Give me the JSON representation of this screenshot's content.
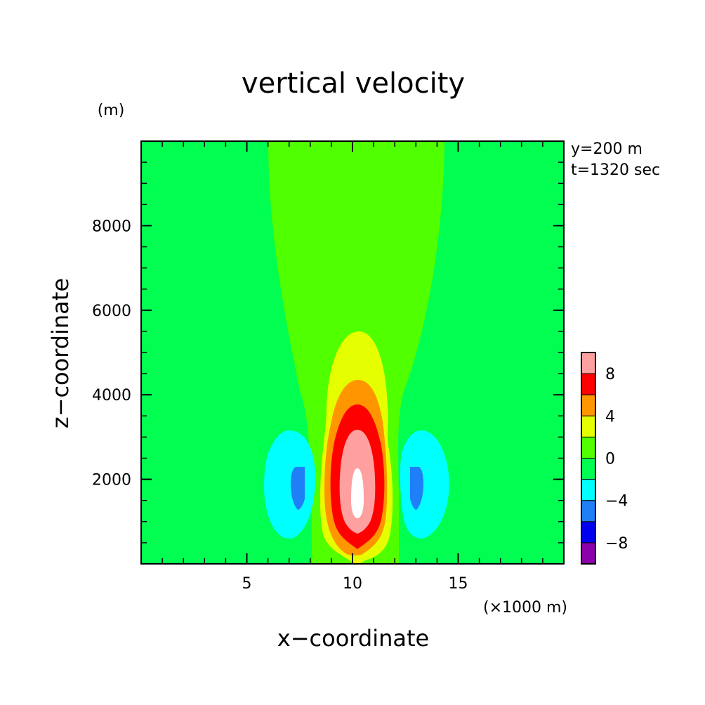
{
  "chart_data": {
    "type": "heatmap",
    "title": "vertical velocity",
    "xlabel": "x−coordinate",
    "ylabel": "z−coordinate",
    "x_unit": "(×1000 m)",
    "y_unit": "(m)",
    "annotations": [
      "y=200 m",
      "t=1320 sec"
    ],
    "xlim": [
      0,
      20
    ],
    "ylim": [
      0,
      10000
    ],
    "x_ticks": [
      5,
      10,
      15
    ],
    "x_tick_labels": [
      "5",
      "10",
      "15"
    ],
    "y_ticks": [
      2000,
      4000,
      6000,
      8000
    ],
    "y_tick_labels": [
      "2000",
      "4000",
      "6000",
      "8000"
    ],
    "colorbar": {
      "levels": [
        -10,
        -8,
        -6,
        -4,
        -2,
        0,
        2,
        4,
        6,
        8,
        10
      ],
      "colors": [
        "#8a00aa",
        "#0000f0",
        "#1f7ff7",
        "#00ffff",
        "#00ff50",
        "#50ff00",
        "#e6ff00",
        "#ff9600",
        "#ff0000",
        "#ffa0a0"
      ],
      "tick_labels": [
        "−8",
        "−4",
        "0",
        "4",
        "8"
      ],
      "tick_values": [
        -8,
        -4,
        0,
        4,
        8
      ]
    },
    "contour_regions": [
      {
        "band": "0 to 2",
        "color": "#50ff00",
        "x_range": [
          6.0,
          14.3
        ],
        "z_range": [
          0,
          10000
        ],
        "note": "broad weak updraft column narrowing toward the ground"
      },
      {
        "band": "2 to 4",
        "color": "#e6ff00",
        "center": [
          10.2,
          2800
        ],
        "x_range": [
          8.6,
          11.7
        ],
        "z_range": [
          100,
          5500
        ]
      },
      {
        "band": "4 to 6",
        "color": "#ff9600",
        "center": [
          10.2,
          2400
        ],
        "x_range": [
          8.9,
          11.4
        ],
        "z_range": [
          200,
          4350
        ]
      },
      {
        "band": "6 to 8",
        "color": "#ff0000",
        "center": [
          10.2,
          2200
        ],
        "x_range": [
          9.1,
          11.3
        ],
        "z_range": [
          350,
          3800
        ]
      },
      {
        "band": "8 to 10",
        "color": "#ffa0a0",
        "center": [
          10.2,
          2000
        ],
        "x_range": [
          9.5,
          10.9
        ],
        "z_range": [
          800,
          3150
        ]
      },
      {
        "band": "above 10",
        "color": "#ffffff",
        "center": [
          10.2,
          1800
        ],
        "x_range": [
          9.9,
          10.5
        ],
        "z_range": [
          1200,
          2500
        ]
      },
      {
        "band": "-4 to -2",
        "color": "#00ffff",
        "center": [
          7.4,
          1900
        ],
        "x_range": [
          5.8,
          8.6
        ],
        "z_range": [
          700,
          3100
        ]
      },
      {
        "band": "-6 to -4",
        "color": "#1f7ff7",
        "center": [
          7.6,
          1800
        ],
        "x_range": [
          7.2,
          8.0
        ],
        "z_range": [
          1300,
          2300
        ]
      },
      {
        "band": "-4 to -2",
        "color": "#00ffff",
        "center": [
          13.1,
          1900
        ],
        "x_range": [
          11.8,
          14.5
        ],
        "z_range": [
          700,
          3100
        ]
      },
      {
        "band": "-6 to -4",
        "color": "#1f7ff7",
        "center": [
          12.9,
          1800
        ],
        "x_range": [
          12.5,
          13.3
        ],
        "z_range": [
          1300,
          2300
        ]
      }
    ],
    "background_band": "-2 to 0",
    "background_color": "#00ff50"
  }
}
